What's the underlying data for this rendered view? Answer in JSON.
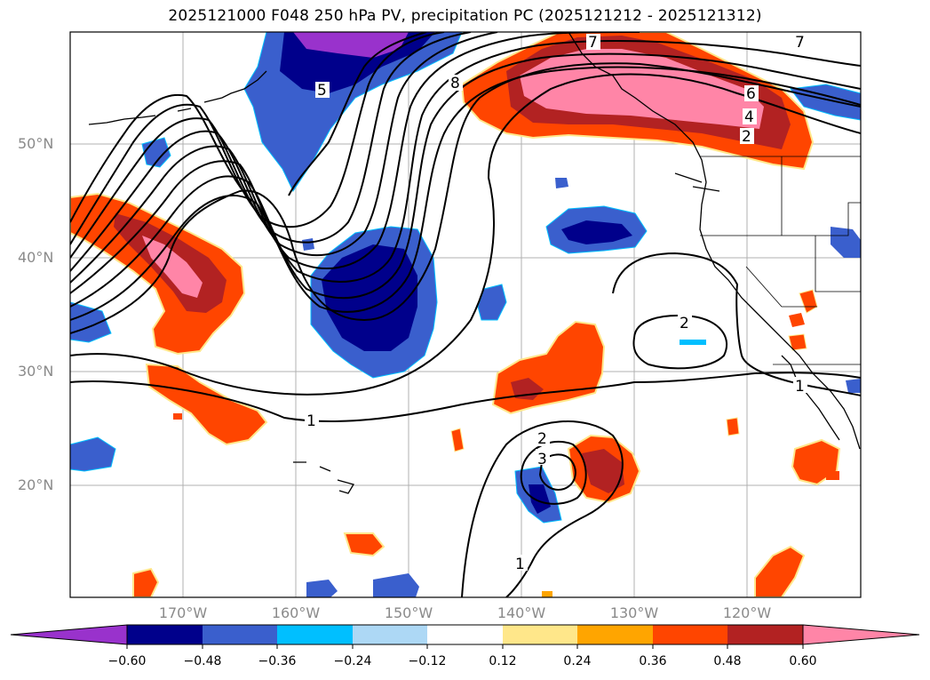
{
  "title": "2025121000 F048 250 hPa PV, precipitation PC (2025121212 - 2025121312)",
  "lat_labels": [
    "50°N",
    "40°N",
    "30°N",
    "20°N"
  ],
  "lon_labels": [
    "170°W",
    "160°W",
    "150°W",
    "140°W",
    "130°W",
    "120°W"
  ],
  "contour_labels": [
    "8",
    "7",
    "6",
    "5",
    "4",
    "2",
    "1",
    "2",
    "3",
    "1",
    "1",
    "2",
    "7"
  ],
  "colorbar": {
    "ticks": [
      "−0.60",
      "−0.48",
      "−0.36",
      "−0.24",
      "−0.12",
      "0.12",
      "0.24",
      "0.36",
      "0.48",
      "0.60"
    ],
    "colors": [
      "#9932cc",
      "#00008b",
      "#3a5fcd",
      "#00bfff",
      "#add8f5",
      "#ffffff",
      "#ffe78a",
      "#ffa500",
      "#ff4500",
      "#b22222",
      "#ff85a7"
    ]
  },
  "colors": {
    "neg_strong": "#00008b",
    "neg_mid": "#3a5fcd",
    "neg_light": "#00bfff",
    "neg_pale": "#add8f5",
    "neg_purple": "#9932cc",
    "pos_yellow": "#ffe78a",
    "pos_orange": "#ffa500",
    "pos_red": "#ff4500",
    "pos_dark": "#b22222",
    "pos_pink": "#ff85a7"
  }
}
